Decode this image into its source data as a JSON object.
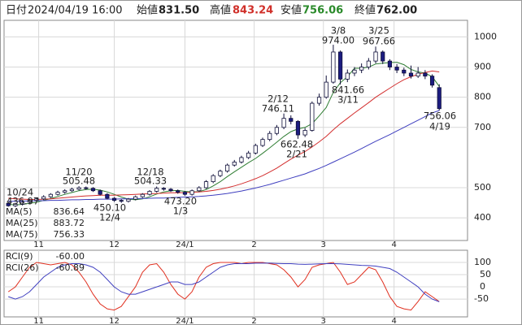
{
  "header": {
    "date_label": "日付",
    "date": "2024/04/19 16:00",
    "open_label": "始値",
    "open": "831.50",
    "high_label": "高値",
    "high": "843.24",
    "low_label": "安値",
    "low": "756.06",
    "close_label": "終値",
    "close": "762.00"
  },
  "chart_data": [
    {
      "type": "candlestick",
      "up_color": "#ffffff",
      "down_color": "#1c1c80",
      "wick_color": "#10103a",
      "grid": true,
      "ylim": [
        325,
        1055
      ],
      "yticks": [
        400,
        500,
        700,
        800,
        900,
        1000
      ],
      "xlim": [
        -0.6,
        65
      ],
      "xticks": [
        {
          "value": 4.3,
          "label": "11"
        },
        {
          "value": 15,
          "label": "12"
        },
        {
          "value": 25,
          "label": "24/1"
        },
        {
          "value": 34.8,
          "label": "2"
        },
        {
          "value": 44.6,
          "label": "3"
        },
        {
          "value": 54.6,
          "label": "4"
        }
      ],
      "ohlc": [
        [
          448,
          452,
          437,
          440
        ],
        [
          440,
          450,
          436,
          445
        ],
        [
          445,
          456,
          441,
          452
        ],
        [
          452,
          463,
          448,
          458
        ],
        [
          458,
          468,
          454,
          463
        ],
        [
          463,
          475,
          459,
          470
        ],
        [
          470,
          482,
          466,
          478
        ],
        [
          478,
          490,
          474,
          485
        ],
        [
          485,
          495,
          480,
          490
        ],
        [
          490,
          500,
          486,
          495
        ],
        [
          495,
          505,
          491,
          500
        ],
        [
          500,
          504,
          493,
          498
        ],
        [
          498,
          502,
          486,
          490
        ],
        [
          490,
          494,
          474,
          478
        ],
        [
          478,
          482,
          461,
          465
        ],
        [
          465,
          469,
          453,
          458
        ],
        [
          458,
          462,
          450,
          455
        ],
        [
          455,
          466,
          451,
          462
        ],
        [
          462,
          474,
          458,
          470
        ],
        [
          470,
          482,
          466,
          478
        ],
        [
          478,
          492,
          474,
          488
        ],
        [
          488,
          504,
          484,
          498
        ],
        [
          498,
          502,
          490,
          495
        ],
        [
          495,
          499,
          486,
          490
        ],
        [
          490,
          494,
          480,
          485
        ],
        [
          485,
          489,
          473,
          478
        ],
        [
          478,
          494,
          474,
          490
        ],
        [
          490,
          505,
          486,
          500
        ],
        [
          500,
          525,
          496,
          520
        ],
        [
          520,
          545,
          515,
          540
        ],
        [
          540,
          560,
          535,
          555
        ],
        [
          555,
          580,
          550,
          575
        ],
        [
          575,
          592,
          570,
          585
        ],
        [
          585,
          606,
          580,
          600
        ],
        [
          600,
          622,
          595,
          615
        ],
        [
          615,
          646,
          610,
          640
        ],
        [
          640,
          666,
          635,
          660
        ],
        [
          660,
          688,
          654,
          680
        ],
        [
          680,
          708,
          674,
          700
        ],
        [
          700,
          746,
          694,
          730
        ],
        [
          730,
          740,
          710,
          720
        ],
        [
          720,
          724,
          662,
          675
        ],
        [
          675,
          698,
          668,
          690
        ],
        [
          690,
          786,
          686,
          780
        ],
        [
          780,
          812,
          772,
          800
        ],
        [
          800,
          872,
          795,
          850
        ],
        [
          850,
          974,
          845,
          950
        ],
        [
          950,
          955,
          842,
          860
        ],
        [
          860,
          892,
          850,
          880
        ],
        [
          880,
          900,
          870,
          890
        ],
        [
          890,
          912,
          880,
          900
        ],
        [
          900,
          930,
          892,
          920
        ],
        [
          920,
          968,
          912,
          950
        ],
        [
          950,
          955,
          910,
          920
        ],
        [
          920,
          926,
          890,
          900
        ],
        [
          900,
          910,
          880,
          890
        ],
        [
          890,
          898,
          870,
          880
        ],
        [
          880,
          905,
          862,
          870
        ],
        [
          870,
          900,
          864,
          880
        ],
        [
          880,
          890,
          860,
          870
        ],
        [
          870,
          876,
          832,
          840
        ],
        [
          832,
          843,
          756,
          762
        ]
      ],
      "lines": [
        {
          "name": "MA(5)",
          "value_label": "836.64",
          "color": "#2e7d32",
          "values": [
            445,
            443,
            445,
            448,
            452,
            458,
            464,
            471,
            478,
            484,
            490,
            494,
            495,
            492,
            486,
            478,
            469,
            462,
            460,
            463,
            470,
            479,
            486,
            490,
            491,
            488,
            486,
            487,
            494,
            506,
            520,
            537,
            553,
            568,
            583,
            597,
            614,
            632,
            651,
            670,
            686,
            695,
            700,
            712,
            738,
            766,
            816,
            848,
            868,
            896,
            896,
            900,
            910,
            913,
            915,
            916,
            908,
            892,
            884,
            880,
            868,
            836
          ]
        },
        {
          "name": "MA(25)",
          "value_label": "883.72",
          "color": "#d32f2f",
          "values": [
            465,
            463,
            462,
            461,
            461,
            462,
            463,
            465,
            467,
            469,
            471,
            473,
            474,
            475,
            475,
            475,
            476,
            477,
            478,
            479,
            480,
            481,
            482,
            483,
            483,
            484,
            485,
            486,
            488,
            491,
            495,
            500,
            506,
            513,
            521,
            530,
            540,
            552,
            565,
            580,
            595,
            608,
            620,
            635,
            652,
            670,
            692,
            712,
            730,
            748,
            765,
            782,
            800,
            815,
            830,
            845,
            858,
            868,
            876,
            882,
            887,
            884
          ]
        },
        {
          "name": "MA(75)",
          "value_label": "756.33",
          "color": "#3f3fbf",
          "values": [
            455,
            455,
            456,
            456,
            457,
            457,
            458,
            458,
            459,
            460,
            460,
            461,
            461,
            462,
            462,
            462,
            463,
            463,
            464,
            464,
            465,
            466,
            466,
            467,
            468,
            469,
            470,
            471,
            473,
            475,
            478,
            481,
            485,
            489,
            494,
            499,
            505,
            511,
            518,
            525,
            532,
            539,
            546,
            555,
            564,
            574,
            585,
            596,
            607,
            618,
            630,
            642,
            654,
            665,
            676,
            688,
            700,
            712,
            724,
            736,
            748,
            756
          ]
        }
      ],
      "annotations": [
        {
          "date": "10/24",
          "price": "436.97"
        },
        {
          "date": "11/20",
          "price": "505.48"
        },
        {
          "date": "12/4",
          "price": "450.10"
        },
        {
          "date": "12/18",
          "price": "504.33"
        },
        {
          "date": "1/3",
          "price": "473.20"
        },
        {
          "date": "2/12",
          "price": "746.11"
        },
        {
          "date": "2/21",
          "price": "662.48"
        },
        {
          "date": "3/8",
          "price": "974.00"
        },
        {
          "date": "3/11",
          "price": "841.66"
        },
        {
          "date": "3/25",
          "price": "967.66"
        },
        {
          "date": "4/19",
          "price": "756.06"
        }
      ]
    },
    {
      "type": "line",
      "grid": true,
      "ylim": [
        -123,
        150
      ],
      "yticks": [
        100,
        50,
        0,
        -50
      ],
      "xlim": [
        -0.6,
        65
      ],
      "xticks": [
        {
          "value": 4.3,
          "label": "11"
        },
        {
          "value": 15,
          "label": "12"
        },
        {
          "value": 25,
          "label": "24/1"
        },
        {
          "value": 34.8,
          "label": "2"
        },
        {
          "value": 44.6,
          "label": "3"
        },
        {
          "value": 54.6,
          "label": "4"
        }
      ],
      "series": [
        {
          "name": "RCI(9)",
          "value_label": "-60.00",
          "color": "#e03020",
          "values": [
            -20,
            0,
            40,
            80,
            100,
            95,
            90,
            95,
            100,
            90,
            60,
            20,
            -30,
            -70,
            -90,
            -95,
            -80,
            -40,
            0,
            60,
            90,
            95,
            60,
            10,
            -30,
            -50,
            -20,
            40,
            80,
            95,
            100,
            100,
            100,
            95,
            100,
            100,
            100,
            95,
            90,
            70,
            40,
            0,
            30,
            80,
            90,
            95,
            100,
            60,
            10,
            20,
            50,
            80,
            70,
            20,
            -40,
            -80,
            -90,
            -95,
            -60,
            -20,
            -40,
            -60
          ]
        },
        {
          "name": "RCI(26)",
          "value_label": "-60.89",
          "color": "#4040c0",
          "values": [
            -40,
            -50,
            -40,
            -20,
            10,
            40,
            60,
            80,
            90,
            95,
            95,
            90,
            80,
            60,
            30,
            0,
            -20,
            -30,
            -30,
            -20,
            -10,
            0,
            10,
            20,
            20,
            10,
            10,
            20,
            40,
            60,
            80,
            90,
            95,
            95,
            95,
            97,
            97,
            97,
            96,
            95,
            95,
            93,
            92,
            93,
            94,
            95,
            95,
            94,
            92,
            90,
            88,
            87,
            85,
            80,
            75,
            60,
            40,
            20,
            0,
            -30,
            -50,
            -61
          ]
        }
      ]
    }
  ]
}
